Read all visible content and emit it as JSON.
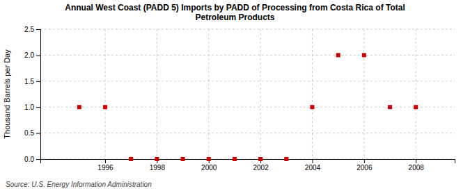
{
  "chart_data": {
    "type": "scatter",
    "title": "Annual West Coast (PADD 5) Imports by PADD of Processing from Costa Rica of Total\nPetroleum Products",
    "ylabel": "Thousand Barrels per Day",
    "annotations": [
      "Source: U.S. Energy Information Administration"
    ],
    "x": [
      1995,
      1996,
      1997,
      1998,
      1999,
      2000,
      2001,
      2002,
      2003,
      2004,
      2005,
      2006,
      2007,
      2008
    ],
    "values": [
      1.0,
      1.0,
      0.0,
      0.0,
      0.0,
      0.0,
      0.0,
      0.0,
      0.0,
      1.0,
      2.0,
      2.0,
      1.0,
      1.0
    ],
    "color": "#cc0000",
    "marker": "square",
    "xlim": [
      1993.5,
      2009.5
    ],
    "ylim": [
      0.0,
      2.5
    ],
    "xticks": [
      1996,
      1998,
      2000,
      2002,
      2004,
      2006,
      2008
    ],
    "yticks": [
      {
        "value": 0.0,
        "label": "0.0"
      },
      0.5,
      {
        "value": 1.0,
        "label": "1.0"
      },
      1.5,
      {
        "value": 2.0,
        "label": "2.0"
      },
      2.5
    ],
    "grid": true
  }
}
